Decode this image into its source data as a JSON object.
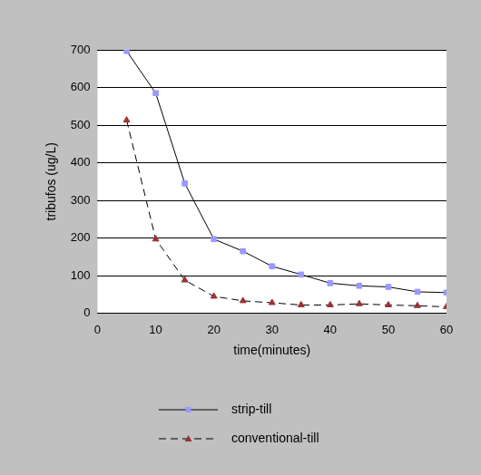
{
  "chart_data": {
    "type": "line",
    "x_label": "time(minutes)",
    "y_label": "tribufos (ug/L)",
    "x": [
      5,
      10,
      15,
      20,
      25,
      30,
      35,
      40,
      45,
      50,
      55,
      60
    ],
    "series": [
      {
        "name": "strip-till",
        "color": "#9999ff",
        "marker": "square",
        "line_style": "solid",
        "values": [
          697,
          585,
          345,
          197,
          165,
          125,
          103,
          80,
          73,
          70,
          57,
          55
        ]
      },
      {
        "name": "conventional-till",
        "color": "#993333",
        "marker": "triangle",
        "line_style": "dashed",
        "values": [
          513,
          197,
          88,
          45,
          33,
          28,
          22,
          22,
          25,
          22,
          20,
          17
        ]
      }
    ],
    "xlim": [
      0,
      60
    ],
    "xticks": [
      0,
      10,
      20,
      30,
      40,
      50,
      60
    ],
    "ylim": [
      0,
      700
    ],
    "yticks": [
      0,
      100,
      200,
      300,
      400,
      500,
      600,
      700
    ],
    "grid": true,
    "legend": "bottom"
  }
}
